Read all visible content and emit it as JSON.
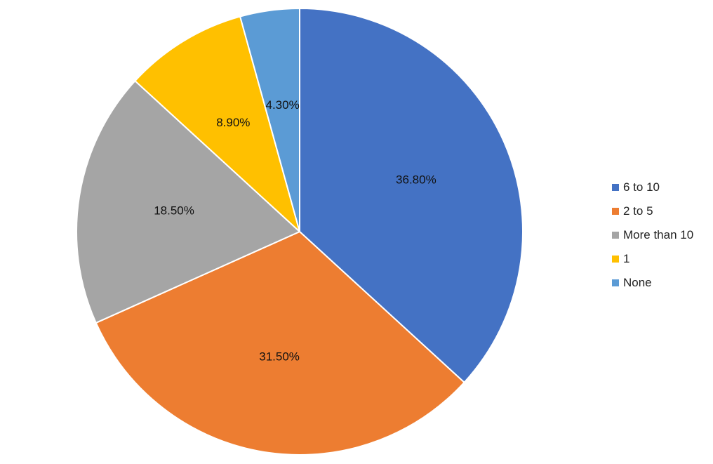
{
  "chart_data": {
    "type": "pie",
    "slices": [
      {
        "label": "6 to 10",
        "value": 36.8,
        "display": "36.80%",
        "color": "#4472C4"
      },
      {
        "label": "2 to 5",
        "value": 31.5,
        "display": "31.50%",
        "color": "#ED7D31"
      },
      {
        "label": "More than 10",
        "value": 18.5,
        "display": "18.50%",
        "color": "#A5A5A5"
      },
      {
        "label": "1",
        "value": 8.9,
        "display": "8.90%",
        "color": "#FFC000"
      },
      {
        "label": "None",
        "value": 4.3,
        "display": "4.30%",
        "color": "#5B9BD5"
      }
    ],
    "start": "12 o'clock",
    "direction": "clockwise",
    "legend_position": "right",
    "slice_border_color": "#FFFFFF"
  }
}
